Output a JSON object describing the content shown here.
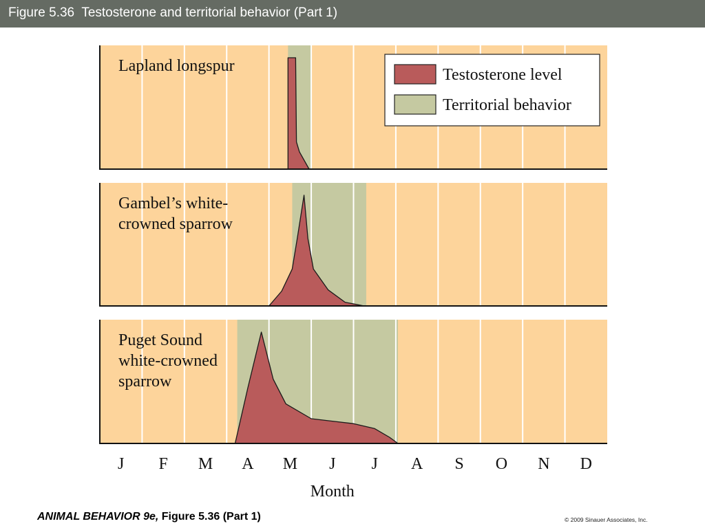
{
  "slide_title": "Figure 5.36  Testosterone and territorial behavior (Part 1)",
  "footer": {
    "book_title": "ANIMAL BEHAVIOR 9e,",
    "figure_ref": "Figure 5.36 (Part 1)",
    "copyright": "© 2009 Sinauer Associates, Inc."
  },
  "colors": {
    "background": "#fdd49b",
    "testosterone": "#b95b5b",
    "territorial": "#c5c9a1",
    "title_bar": "#656b63"
  },
  "chart_data": {
    "type": "area",
    "xlabel": "Month",
    "categories": [
      "J",
      "F",
      "M",
      "A",
      "M",
      "J",
      "J",
      "A",
      "S",
      "O",
      "N",
      "D"
    ],
    "xlim": [
      0,
      12
    ],
    "legend": {
      "placement": "top-right",
      "entries": [
        {
          "name": "Testosterone level",
          "color": "#b95b5b"
        },
        {
          "name": "Territorial behavior",
          "color": "#c5c9a1"
        }
      ]
    },
    "panels": [
      {
        "species": [
          "Lapland longspur"
        ],
        "territorial_behavior": [
          4.45,
          5.0
        ],
        "testosterone_level": [
          [
            4.45,
            0
          ],
          [
            4.45,
            0.9
          ],
          [
            4.63,
            0.9
          ],
          [
            4.65,
            0.22
          ],
          [
            4.72,
            0.14
          ],
          [
            4.95,
            0
          ]
        ]
      },
      {
        "species": [
          "Gambel’s white-",
          "crowned sparrow"
        ],
        "territorial_behavior": [
          4.55,
          6.3
        ],
        "testosterone_level": [
          [
            4.0,
            0
          ],
          [
            4.3,
            0.12
          ],
          [
            4.55,
            0.3
          ],
          [
            4.67,
            0.55
          ],
          [
            4.83,
            0.9
          ],
          [
            4.92,
            0.55
          ],
          [
            5.05,
            0.3
          ],
          [
            5.4,
            0.13
          ],
          [
            5.8,
            0.03
          ],
          [
            6.25,
            0
          ]
        ]
      },
      {
        "species": [
          "Puget Sound",
          "white-crowned",
          "sparrow"
        ],
        "territorial_behavior": [
          3.25,
          7.05
        ],
        "testosterone_level": [
          [
            3.2,
            0
          ],
          [
            3.5,
            0.45
          ],
          [
            3.82,
            0.9
          ],
          [
            4.1,
            0.52
          ],
          [
            4.4,
            0.32
          ],
          [
            5.0,
            0.2
          ],
          [
            5.5,
            0.18
          ],
          [
            6.0,
            0.16
          ],
          [
            6.5,
            0.12
          ],
          [
            6.85,
            0.05
          ],
          [
            7.05,
            0
          ]
        ]
      }
    ]
  }
}
